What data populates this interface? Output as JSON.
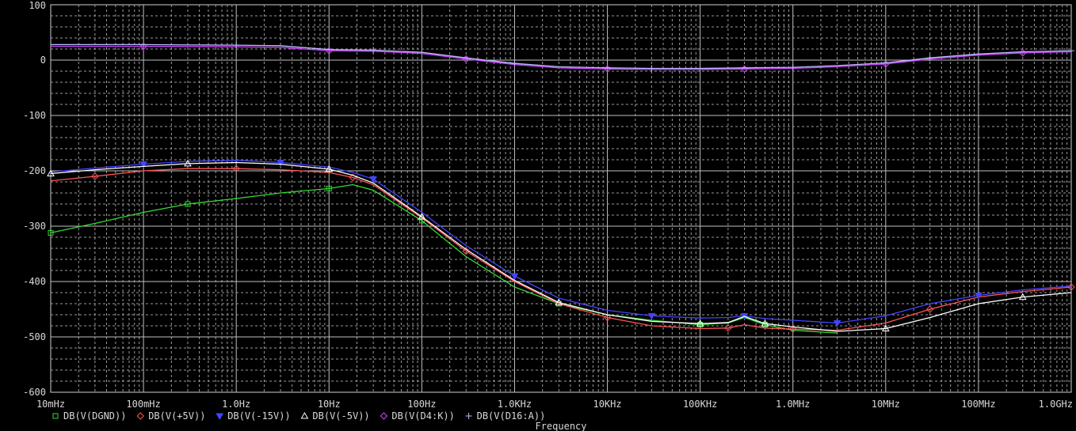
{
  "chart_data": {
    "type": "line",
    "title": "",
    "xlabel": "Frequency",
    "ylabel": "",
    "xscale": "log",
    "xlim": [
      0.01,
      1000000000
    ],
    "ylim": [
      -600,
      100
    ],
    "grid": true,
    "legend_placement": "bottom-left",
    "x_tick_values": [
      0.01,
      0.1,
      1,
      10,
      100,
      1000,
      10000,
      100000,
      1000000,
      10000000,
      100000000,
      1000000000
    ],
    "x_tick_labels": [
      "10mHz",
      "100mHz",
      "1.0Hz",
      "10Hz",
      "100Hz",
      "1.0KHz",
      "10KHz",
      "100KHz",
      "1.0MHz",
      "10MHz",
      "100MHz",
      "1.0GHz"
    ],
    "y_tick_values": [
      100,
      0,
      -100,
      -200,
      -300,
      -400,
      -500,
      -600
    ],
    "y_tick_labels": [
      "100",
      "0",
      "-100",
      "-200",
      "-300",
      "-400",
      "-500",
      "-600"
    ],
    "series": [
      {
        "name": "DB(V(DGND))",
        "color": "#33dd33",
        "marker": "square",
        "x": [
          0.01,
          0.03,
          0.1,
          0.3,
          1,
          3,
          10,
          18,
          30,
          100,
          300,
          1000,
          3000,
          10000,
          30000,
          100000,
          200000,
          300000,
          500000,
          1000000,
          3000000
        ],
        "y": [
          -312,
          -295,
          -275,
          -260,
          -250,
          -240,
          -232,
          -225,
          -235,
          -290,
          -355,
          -410,
          -440,
          -460,
          -470,
          -478,
          -475,
          -465,
          -478,
          -488,
          -493
        ]
      },
      {
        "name": "DB(V(+5V))",
        "color": "#ff5555",
        "marker": "diamond",
        "x": [
          0.01,
          0.03,
          0.1,
          0.3,
          1,
          3,
          10,
          18,
          30,
          100,
          300,
          1000,
          3000,
          10000,
          30000,
          100000,
          200000,
          300000,
          500000,
          1000000,
          3000000,
          10000000,
          30000000,
          100000000,
          300000000,
          1000000000
        ],
        "y": [
          -218,
          -210,
          -200,
          -196,
          -196,
          -198,
          -203,
          -212,
          -225,
          -285,
          -345,
          -400,
          -440,
          -465,
          -480,
          -485,
          -484,
          -478,
          -484,
          -486,
          -488,
          -475,
          -450,
          -428,
          -418,
          -410
        ]
      },
      {
        "name": "DB(V(-15V))",
        "color": "#4444ff",
        "marker": "triangle-down",
        "x": [
          0.01,
          0.03,
          0.1,
          0.3,
          1,
          3,
          10,
          18,
          30,
          100,
          300,
          1000,
          3000,
          10000,
          30000,
          100000,
          200000,
          300000,
          500000,
          1000000,
          3000000,
          10000000,
          30000000,
          100000000,
          300000000,
          1000000000
        ],
        "y": [
          -202,
          -195,
          -188,
          -183,
          -181,
          -185,
          -193,
          -203,
          -215,
          -275,
          -335,
          -390,
          -430,
          -452,
          -462,
          -466,
          -465,
          -462,
          -467,
          -470,
          -475,
          -462,
          -440,
          -425,
          -415,
          -408
        ]
      },
      {
        "name": "DB(V(-5V))",
        "color": "#ffffff",
        "marker": "triangle-up",
        "x": [
          0.01,
          0.03,
          0.1,
          0.3,
          1,
          3,
          10,
          18,
          30,
          100,
          300,
          1000,
          3000,
          10000,
          30000,
          100000,
          200000,
          300000,
          500000,
          1000000,
          3000000,
          10000000,
          30000000,
          100000000,
          300000000,
          1000000000
        ],
        "y": [
          -205,
          -198,
          -192,
          -187,
          -185,
          -188,
          -197,
          -208,
          -222,
          -283,
          -342,
          -398,
          -438,
          -460,
          -472,
          -476,
          -474,
          -463,
          -476,
          -482,
          -490,
          -485,
          -465,
          -440,
          -428,
          -420
        ]
      },
      {
        "name": "DB(V(D4:K))",
        "color": "#cc44ff",
        "marker": "diamond",
        "x": [
          0.01,
          0.1,
          1,
          3,
          10,
          30,
          100,
          300,
          1000,
          3000,
          10000,
          30000,
          100000,
          300000,
          1000000,
          3000000,
          10000000,
          30000000,
          100000000,
          300000000,
          1000000000
        ],
        "y": [
          25,
          25,
          24,
          23,
          17,
          16,
          12,
          2,
          -8,
          -14,
          -16,
          -17,
          -17,
          -16,
          -15,
          -12,
          -7,
          2,
          9,
          13,
          15
        ]
      },
      {
        "name": "DB(V(D16:A))",
        "color": "#bbbbff",
        "marker": "plus",
        "x": [
          0.01,
          0.1,
          1,
          3,
          10,
          30,
          100,
          300,
          1000,
          3000,
          10000,
          30000,
          100000,
          300000,
          1000000,
          3000000,
          10000000,
          30000000,
          100000000,
          300000000,
          1000000000
        ],
        "y": [
          28,
          28,
          27,
          26,
          19,
          18,
          14,
          4,
          -6,
          -12,
          -14,
          -15,
          -15,
          -14,
          -13,
          -10,
          -5,
          4,
          11,
          15,
          17
        ]
      }
    ]
  }
}
